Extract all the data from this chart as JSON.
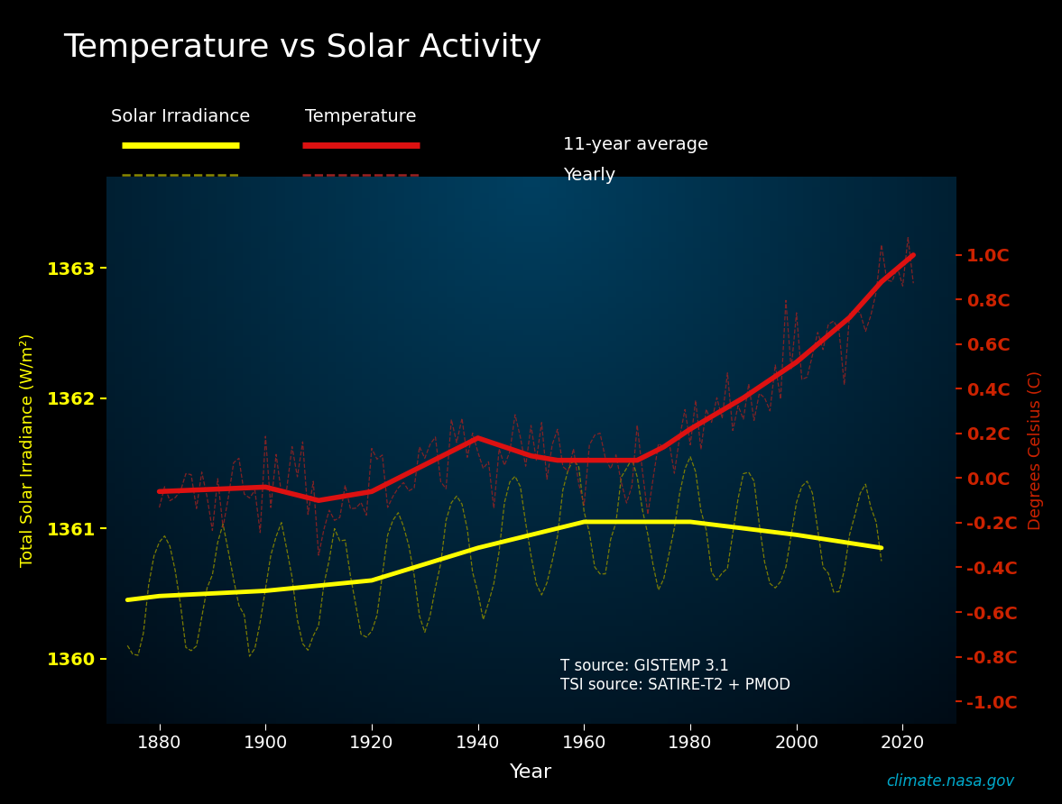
{
  "title": "Temperature vs Solar Activity",
  "xlabel": "Year",
  "ylabel_left": "Total Solar Irradiance (W/m²)",
  "ylabel_right": "Degrees Celsius (C)",
  "background_color": "#000000",
  "title_color": "#ffffff",
  "tick_color": "#ffffff",
  "left_tick_color": "#ffff00",
  "right_tick_color": "#cc2200",
  "source_text": "T source: GISTEMP 3.1\nTSI source: SATIRE-T2 + PMOD",
  "watermark": "climate.nasa.gov",
  "xlim": [
    1870,
    2030
  ],
  "ylim_left": [
    1359.5,
    1363.7
  ],
  "ylim_right": [
    -1.1,
    1.35
  ],
  "yticks_left": [
    1360,
    1361,
    1362,
    1363
  ],
  "yticks_right_vals": [
    -1.0,
    -0.8,
    -0.6,
    -0.4,
    -0.2,
    0.0,
    0.2,
    0.4,
    0.6,
    0.8,
    1.0
  ],
  "yticks_right_labels": [
    "-1.0C",
    "-0.8C",
    "-0.6C",
    "-0.4C",
    "-0.2C",
    "0.0C",
    "0.2C",
    "0.4C",
    "0.6C",
    "0.8C",
    "1.0C"
  ],
  "xticks": [
    1880,
    1900,
    1920,
    1940,
    1960,
    1980,
    2000,
    2020
  ],
  "solar_color": "#ffff00",
  "temp_color": "#dd1111",
  "solar_yearly_color": "#888800",
  "temp_yearly_color": "#992222"
}
